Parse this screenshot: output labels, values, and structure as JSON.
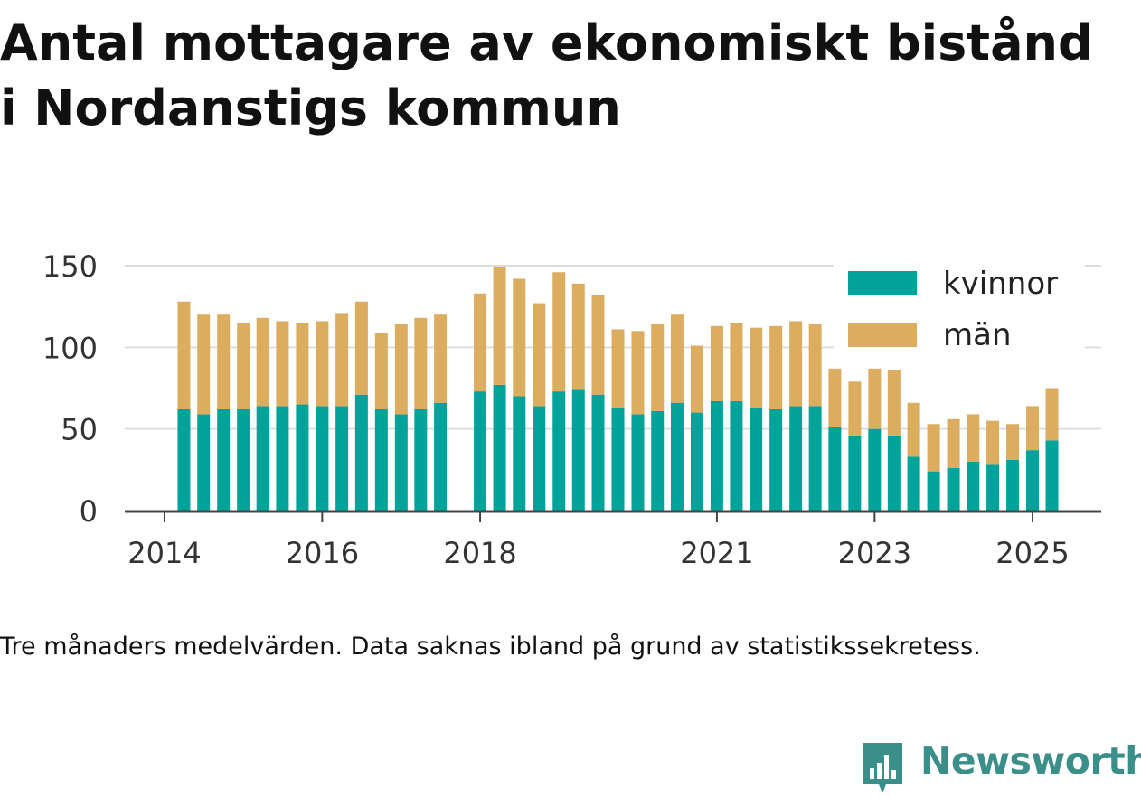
{
  "title_lines": [
    "Antal mottagare av ekonomiskt bistånd",
    "i Nordanstigs kommun"
  ],
  "note": "Tre månaders medelvärden. Data saknas ibland på grund av statistikssekretess.",
  "brand": "Newsworthy",
  "colors": {
    "kvinnor": "#00a39a",
    "man": "#dcad5f",
    "grid": "#dddddd",
    "axis": "#444444",
    "brand": "#3a8f8a"
  },
  "chart_data": {
    "type": "bar",
    "stacked": true,
    "x_ticks": [
      "2014",
      "2016",
      "2018",
      "2021",
      "2023",
      "2025"
    ],
    "y_ticks": [
      0,
      50,
      100,
      150
    ],
    "ylim": [
      0,
      150
    ],
    "legend": {
      "position": "top-right",
      "entries": [
        "kvinnor",
        "män"
      ]
    },
    "grid": true,
    "x": [
      "2014-04",
      "2014-07",
      "2014-10",
      "2015-01",
      "2015-04",
      "2015-07",
      "2015-10",
      "2016-01",
      "2016-04",
      "2016-07",
      "2016-10",
      "2017-01",
      "2017-04",
      "2017-07",
      "2018-01",
      "2018-04",
      "2018-07",
      "2018-10",
      "2019-01",
      "2019-04",
      "2019-07",
      "2019-10",
      "2020-01",
      "2020-04",
      "2020-07",
      "2020-10",
      "2021-01",
      "2021-04",
      "2021-07",
      "2021-10",
      "2022-01",
      "2022-04",
      "2022-07",
      "2022-10",
      "2023-01",
      "2023-04",
      "2023-07",
      "2023-10",
      "2024-01",
      "2024-04",
      "2024-07",
      "2024-10",
      "2025-01",
      "2025-04"
    ],
    "series": [
      {
        "name": "kvinnor",
        "values": [
          62,
          59,
          62,
          62,
          64,
          64,
          65,
          64,
          64,
          71,
          62,
          59,
          62,
          66,
          73,
          77,
          70,
          64,
          73,
          74,
          71,
          63,
          59,
          61,
          66,
          60,
          67,
          67,
          63,
          62,
          64,
          64,
          51,
          46,
          50,
          46,
          33,
          24,
          26,
          30,
          28,
          31,
          37,
          43
        ]
      },
      {
        "name": "män",
        "values": [
          66,
          61,
          58,
          53,
          54,
          52,
          50,
          52,
          57,
          57,
          47,
          55,
          56,
          54,
          60,
          72,
          72,
          63,
          73,
          65,
          61,
          48,
          51,
          53,
          54,
          41,
          46,
          48,
          49,
          51,
          52,
          50,
          36,
          33,
          37,
          40,
          33,
          29,
          30,
          29,
          27,
          22,
          27,
          32
        ]
      }
    ]
  }
}
